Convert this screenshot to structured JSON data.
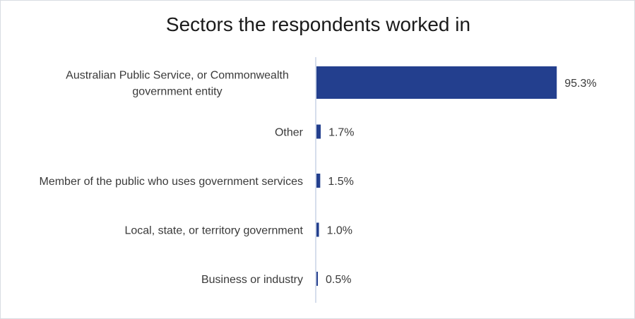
{
  "chart_data": {
    "type": "bar",
    "orientation": "horizontal",
    "title": "Sectors the respondents worked in",
    "categories": [
      "Australian Public Service, or Commonwealth government entity",
      "Other",
      "Member of the public who uses government services",
      "Local, state, or territory government",
      "Business or industry"
    ],
    "category_lines": [
      [
        "Australian Public Service, or Commonwealth",
        "government entity"
      ],
      [
        "Other"
      ],
      [
        "Member of the public who uses government services"
      ],
      [
        "Local, state, or territory government"
      ],
      [
        "Business or industry"
      ]
    ],
    "values": [
      95.3,
      1.7,
      1.5,
      1.0,
      0.5
    ],
    "value_labels": [
      "95.3%",
      "1.7%",
      "1.5%",
      "1.0%",
      "0.5%"
    ],
    "unit": "%",
    "xlim": [
      0,
      100
    ],
    "grid": false,
    "legend": "none",
    "bar_color": "#233f8e",
    "axis_color": "#c9d3e6"
  }
}
